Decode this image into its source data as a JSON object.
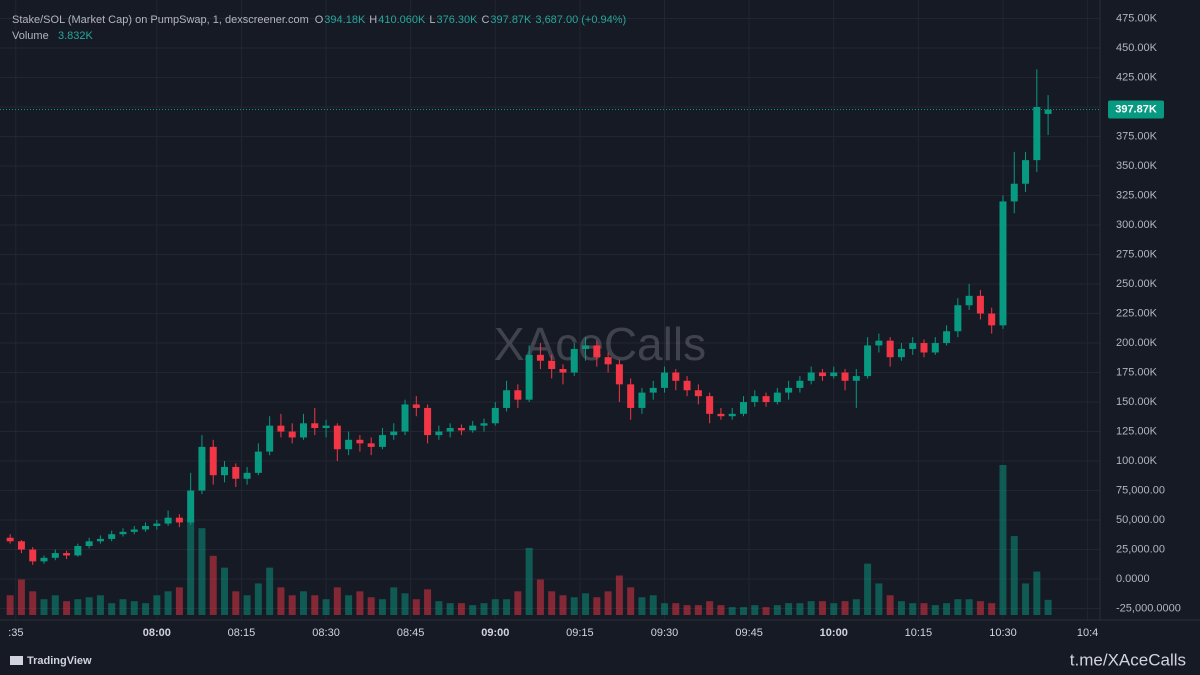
{
  "chart_data": {
    "type": "candlestick",
    "title": "Stake/SOL (Market Cap) on PumpSwap, 1, dexscreener.com",
    "ohlc_legend": [
      {
        "key": "O",
        "value": "394.18K"
      },
      {
        "key": "H",
        "value": "410.060K"
      },
      {
        "key": "L",
        "value": "376.30K"
      },
      {
        "key": "C",
        "value": "397.87K"
      }
    ],
    "change": "3,687.00 (+0.94%)",
    "volume_label": "Volume",
    "volume_value": "3.832K",
    "watermark": "XAceCalls",
    "last_price_label": "397.87K",
    "up_color": "#089981",
    "down_color": "#f23645",
    "grid": true,
    "open": [
      35000,
      32000,
      25000,
      15000,
      18000,
      22000,
      20000,
      28000,
      32000,
      34000,
      38000,
      40000,
      42000,
      45000,
      47000,
      52000,
      48000,
      75000,
      112000,
      88000,
      95000,
      85000,
      90000,
      108000,
      130000,
      125000,
      120000,
      132000,
      128000,
      130000,
      110000,
      118000,
      115000,
      112000,
      122000,
      125000,
      148000,
      145000,
      122000,
      125000,
      128000,
      126000,
      130000,
      132000,
      145000,
      160000,
      152000,
      190000,
      185000,
      178000,
      175000,
      195000,
      198000,
      188000,
      182000,
      165000,
      145000,
      158000,
      162000,
      175000,
      168000,
      160000,
      155000,
      140000,
      138000,
      140000,
      150000,
      155000,
      150000,
      158000,
      162000,
      168000,
      175000,
      172000,
      175000,
      168000,
      172000,
      198000,
      202000,
      188000,
      195000,
      200000,
      192000,
      200000,
      210000,
      232000,
      240000,
      225000,
      215000,
      320000,
      335000,
      355000,
      394180
    ],
    "high": [
      38000,
      33000,
      27000,
      20000,
      25000,
      24000,
      30000,
      35000,
      37000,
      41000,
      43000,
      45000,
      48000,
      50000,
      58000,
      55000,
      90000,
      122000,
      118000,
      100000,
      98000,
      95000,
      115000,
      138000,
      140000,
      132000,
      140000,
      145000,
      135000,
      132000,
      125000,
      122000,
      120000,
      128000,
      132000,
      152000,
      155000,
      148000,
      130000,
      132000,
      131000,
      134000,
      136000,
      150000,
      168000,
      165000,
      198000,
      200000,
      190000,
      182000,
      200000,
      205000,
      202000,
      192000,
      186000,
      170000,
      162000,
      168000,
      180000,
      178000,
      172000,
      165000,
      158000,
      145000,
      145000,
      155000,
      160000,
      158000,
      162000,
      168000,
      172000,
      180000,
      178000,
      180000,
      178000,
      178000,
      205000,
      208000,
      205000,
      200000,
      205000,
      203000,
      205000,
      215000,
      238000,
      250000,
      245000,
      230000,
      325000,
      362000,
      362000,
      432000,
      410060
    ],
    "low": [
      30000,
      22000,
      12000,
      13000,
      16000,
      17000,
      19000,
      26000,
      30000,
      32000,
      36000,
      38000,
      40000,
      42000,
      45000,
      44000,
      46000,
      72000,
      80000,
      82000,
      78000,
      80000,
      88000,
      105000,
      120000,
      115000,
      118000,
      122000,
      120000,
      100000,
      105000,
      108000,
      105000,
      110000,
      118000,
      122000,
      138000,
      115000,
      118000,
      120000,
      122000,
      124000,
      125000,
      130000,
      142000,
      145000,
      150000,
      178000,
      170000,
      165000,
      172000,
      185000,
      180000,
      175000,
      150000,
      135000,
      140000,
      152000,
      158000,
      160000,
      155000,
      148000,
      132000,
      135000,
      135000,
      138000,
      146000,
      146000,
      148000,
      152000,
      158000,
      165000,
      168000,
      170000,
      160000,
      145000,
      170000,
      192000,
      180000,
      185000,
      190000,
      188000,
      190000,
      198000,
      205000,
      228000,
      220000,
      208000,
      212000,
      310000,
      328000,
      345000,
      376300
    ],
    "close": [
      32000,
      25000,
      15000,
      18000,
      22000,
      20000,
      28000,
      32000,
      34000,
      38000,
      40000,
      42000,
      45000,
      47000,
      52000,
      48000,
      75000,
      112000,
      88000,
      95000,
      85000,
      90000,
      108000,
      130000,
      125000,
      120000,
      132000,
      128000,
      130000,
      110000,
      118000,
      115000,
      112000,
      122000,
      125000,
      148000,
      145000,
      122000,
      125000,
      128000,
      126000,
      130000,
      132000,
      145000,
      160000,
      152000,
      190000,
      185000,
      178000,
      175000,
      195000,
      198000,
      188000,
      182000,
      165000,
      145000,
      158000,
      162000,
      175000,
      168000,
      160000,
      155000,
      140000,
      138000,
      140000,
      150000,
      155000,
      150000,
      158000,
      162000,
      168000,
      175000,
      172000,
      175000,
      168000,
      172000,
      198000,
      202000,
      188000,
      195000,
      200000,
      192000,
      200000,
      210000,
      232000,
      240000,
      225000,
      215000,
      320000,
      335000,
      355000,
      400000,
      397870
    ],
    "volume": [
      5000,
      9000,
      6000,
      4000,
      5000,
      3500,
      4000,
      4500,
      5000,
      3000,
      4000,
      3500,
      3000,
      5000,
      6000,
      7000,
      24000,
      22000,
      15000,
      12000,
      6000,
      5000,
      8000,
      12000,
      7000,
      5000,
      6000,
      5000,
      4000,
      7000,
      5000,
      6000,
      4500,
      4000,
      7000,
      5500,
      4000,
      6500,
      3500,
      3000,
      3000,
      2500,
      3000,
      4000,
      4000,
      6000,
      17000,
      9000,
      6000,
      5000,
      4500,
      5500,
      4500,
      6000,
      10000,
      7000,
      4500,
      5000,
      3000,
      3000,
      2500,
      2500,
      3500,
      2500,
      2000,
      2000,
      2500,
      2000,
      2500,
      3000,
      3000,
      3500,
      3500,
      3000,
      3500,
      4000,
      13000,
      8000,
      5000,
      3500,
      3000,
      3000,
      2500,
      3000,
      4000,
      4000,
      3500,
      3000,
      38000,
      20000,
      8000,
      11000,
      3832
    ],
    "xlim": [
      -0.9,
      96.6
    ],
    "xticks": [
      {
        "value": 0.5,
        "label": ":35"
      },
      {
        "value": 13,
        "label": "08:00"
      },
      {
        "value": 20.5,
        "label": "08:15"
      },
      {
        "value": 28,
        "label": "08:30"
      },
      {
        "value": 35.5,
        "label": "08:45"
      },
      {
        "value": 43,
        "label": "09:00"
      },
      {
        "value": 50.5,
        "label": "09:15"
      },
      {
        "value": 58,
        "label": "09:30"
      },
      {
        "value": 65.5,
        "label": "09:45"
      },
      {
        "value": 73,
        "label": "10:00"
      },
      {
        "value": 80.5,
        "label": "10:15"
      },
      {
        "value": 88,
        "label": "10:30"
      },
      {
        "value": 95.5,
        "label": "10:4"
      }
    ],
    "ylim": [
      -34700,
      490700
    ],
    "yticks": [
      {
        "value": 475000,
        "label": "475.00K"
      },
      {
        "value": 450000,
        "label": "450.00K"
      },
      {
        "value": 425000,
        "label": "425.00K"
      },
      {
        "value": 400000,
        "label": "400.00K"
      },
      {
        "value": 375000,
        "label": "375.00K"
      },
      {
        "value": 350000,
        "label": "350.00K"
      },
      {
        "value": 325000,
        "label": "325.00K"
      },
      {
        "value": 300000,
        "label": "300.00K"
      },
      {
        "value": 275000,
        "label": "275.00K"
      },
      {
        "value": 250000,
        "label": "250.00K"
      },
      {
        "value": 225000,
        "label": "225.00K"
      },
      {
        "value": 200000,
        "label": "200.00K"
      },
      {
        "value": 175000,
        "label": "175.00K"
      },
      {
        "value": 150000,
        "label": "150.00K"
      },
      {
        "value": 125000,
        "label": "125.00K"
      },
      {
        "value": 100000,
        "label": "100.00K"
      },
      {
        "value": 75000,
        "label": "75,000.00"
      },
      {
        "value": 50000,
        "label": "50,000.00"
      },
      {
        "value": 25000,
        "label": "25,000.00"
      },
      {
        "value": 0,
        "label": "0.0000"
      },
      {
        "value": -25000,
        "label": "-25,000.0000"
      }
    ]
  },
  "footer": {
    "brand": "TradingView",
    "handle": "t.me/XAceCalls"
  }
}
